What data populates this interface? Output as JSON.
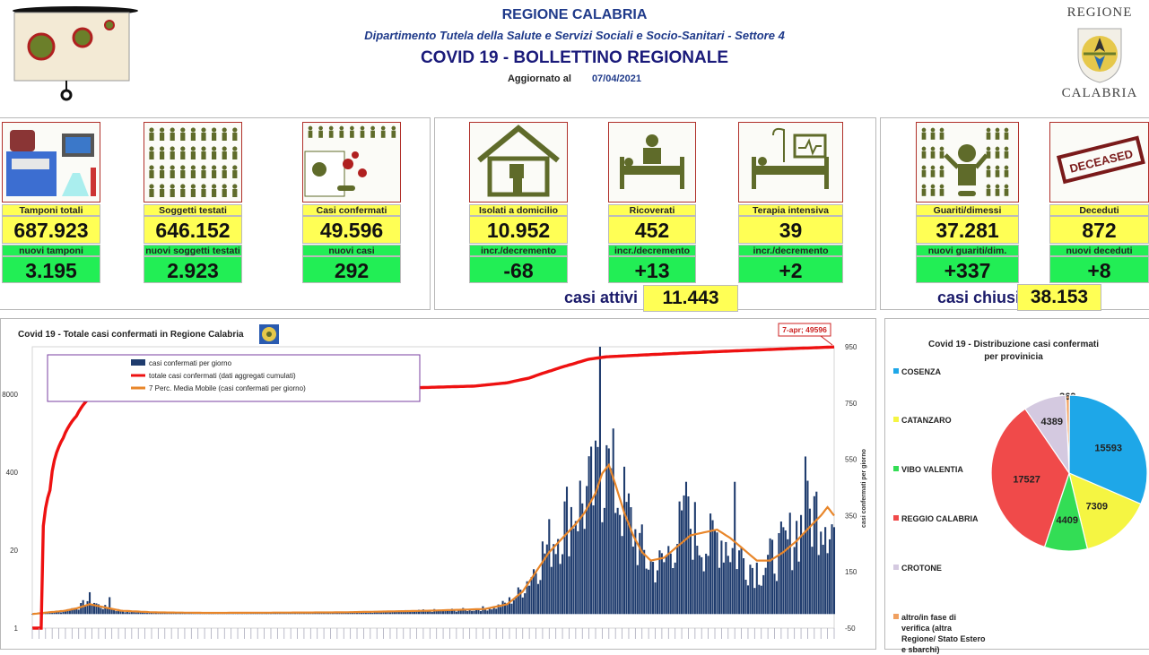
{
  "header": {
    "region": "REGIONE CALABRIA",
    "department": "Dipartimento Tutela della Salute e Servizi Sociali e Socio-Sanitari - Settore 4",
    "title": "COVID 19 - BOLLETTINO REGIONALE",
    "updated_label": "Aggiornato al",
    "updated_date": "07/04/2021",
    "logo_top": "REGIONE",
    "logo_bottom": "CALABRIA"
  },
  "cards": [
    {
      "label": "Tamponi totali",
      "value": "687.923",
      "sub_label": "nuovi tamponi",
      "sub_value": "3.195"
    },
    {
      "label": "Soggetti testati",
      "value": "646.152",
      "sub_label": "nuovi soggetti testati",
      "sub_value": "2.923"
    },
    {
      "label": "Casi confermati",
      "value": "49.596",
      "sub_label": "nuovi casi",
      "sub_value": "292"
    },
    {
      "label": "Isolati a domicilio",
      "value": "10.952",
      "sub_label": "incr./decremento",
      "sub_value": "-68"
    },
    {
      "label": "Ricoverati",
      "value": "452",
      "sub_label": "incr./decremento",
      "sub_value": "+13"
    },
    {
      "label": "Terapia intensiva",
      "value": "39",
      "sub_label": "incr./decremento",
      "sub_value": "+2"
    },
    {
      "label": "Guariti/dimessi",
      "value": "37.281",
      "sub_label": "nuovi guariti/dim.",
      "sub_value": "+337"
    },
    {
      "label": "Deceduti",
      "value": "872",
      "sub_label": "nuovi deceduti",
      "sub_value": "+8",
      "badge": "DECEASED"
    }
  ],
  "summary": {
    "active_label": "casi attivi",
    "active_value": "11.443",
    "closed_label": "casi chiusi",
    "closed_value": "38.153"
  },
  "colors": {
    "title_blue": "#1f3a8a",
    "card_yellow": "#ffff55",
    "card_green": "#22ee55",
    "icon_olive": "#5f6b2a",
    "bar_navy": "#1f3c6e",
    "cumulative_red": "#ee1111",
    "moving_avg_orange": "#e8862a"
  },
  "chart_data": [
    {
      "type": "bar",
      "title": "Covid 19 - Totale casi confermati in Regione Calabria",
      "callout": "7-apr; 49596",
      "legend": [
        "casi confermati per giorno",
        "totale casi confermati (dati aggregati cumulati)",
        "7 Perc. Media Mobile (casi confermati per giorno)"
      ],
      "legend_position": "top-left",
      "left_axis": {
        "scale": "log",
        "ticks": [
          1,
          20,
          400,
          8000
        ]
      },
      "right_axis": {
        "label": "casi confermati per giorno",
        "range": [
          -50,
          950
        ],
        "ticks": [
          -50,
          150,
          350,
          550,
          750,
          950
        ]
      },
      "series": [
        {
          "name": "casi confermati per giorno",
          "kind": "bar",
          "axis": "right",
          "anchors": [
            [
              0,
              0
            ],
            [
              3,
              4
            ],
            [
              8,
              6
            ],
            [
              14,
              10
            ],
            [
              19,
              22
            ],
            [
              22,
              28
            ],
            [
              26,
              55
            ],
            [
              30,
              30
            ],
            [
              34,
              20
            ],
            [
              38,
              15
            ],
            [
              44,
              8
            ],
            [
              55,
              5
            ],
            [
              70,
              5
            ],
            [
              80,
              3
            ],
            [
              100,
              4
            ],
            [
              120,
              4
            ],
            [
              140,
              6
            ],
            [
              160,
              8
            ],
            [
              180,
              12
            ],
            [
              200,
              16
            ],
            [
              210,
              25
            ],
            [
              215,
              40
            ],
            [
              220,
              70
            ],
            [
              225,
              130
            ],
            [
              230,
              200
            ],
            [
              235,
              260
            ],
            [
              240,
              320
            ],
            [
              245,
              380
            ],
            [
              250,
              400
            ],
            [
              255,
              440
            ],
            [
              258,
              520
            ],
            [
              262,
              480
            ],
            [
              266,
              420
            ],
            [
              270,
              340
            ],
            [
              274,
              260
            ],
            [
              278,
              190
            ],
            [
              282,
              170
            ],
            [
              286,
              180
            ],
            [
              290,
              260
            ],
            [
              294,
              300
            ],
            [
              298,
              320
            ],
            [
              302,
              270
            ],
            [
              306,
              240
            ],
            [
              310,
              280
            ],
            [
              314,
              260
            ],
            [
              318,
              220
            ],
            [
              322,
              200
            ],
            [
              326,
              170
            ],
            [
              330,
              160
            ],
            [
              334,
              190
            ],
            [
              338,
              220
            ],
            [
              342,
              250
            ],
            [
              346,
              300
            ],
            [
              350,
              330
            ],
            [
              354,
              360
            ],
            [
              357,
              380
            ],
            [
              360,
              360
            ],
            [
              363,
              300
            ]
          ],
          "peaks": [
            [
              257,
              950
            ],
            [
              35,
              60
            ],
            [
              260,
              600
            ],
            [
              318,
              470
            ],
            [
              350,
              560
            ],
            [
              296,
              470
            ]
          ]
        },
        {
          "name": "totale casi confermati (dati aggregati cumulati)",
          "kind": "line",
          "axis": "left",
          "points": [
            [
              0,
              1
            ],
            [
              4,
              1
            ],
            [
              8,
              200
            ],
            [
              14,
              1500
            ],
            [
              20,
              3500
            ],
            [
              25,
              6500
            ],
            [
              30,
              8000
            ],
            [
              36,
              8500
            ],
            [
              45,
              9100
            ],
            [
              60,
              9400
            ],
            [
              100,
              9700
            ],
            [
              160,
              10000
            ],
            [
              200,
              11000
            ],
            [
              215,
              12500
            ],
            [
              225,
              15000
            ],
            [
              235,
              20000
            ],
            [
              245,
              26000
            ],
            [
              252,
              31000
            ],
            [
              260,
              34000
            ],
            [
              280,
              37000
            ],
            [
              300,
              40000
            ],
            [
              320,
              43000
            ],
            [
              340,
              46000
            ],
            [
              363,
              49596
            ]
          ]
        },
        {
          "name": "7 Perc. Media Mobile (casi confermati per giorno)",
          "kind": "line",
          "axis": "right",
          "points": [
            [
              0,
              0
            ],
            [
              6,
              5
            ],
            [
              15,
              12
            ],
            [
              20,
              20
            ],
            [
              26,
              35
            ],
            [
              32,
              25
            ],
            [
              40,
              12
            ],
            [
              55,
              6
            ],
            [
              80,
              4
            ],
            [
              140,
              6
            ],
            [
              180,
              12
            ],
            [
              205,
              18
            ],
            [
              215,
              35
            ],
            [
              222,
              80
            ],
            [
              228,
              150
            ],
            [
              234,
              220
            ],
            [
              240,
              270
            ],
            [
              246,
              320
            ],
            [
              250,
              360
            ],
            [
              255,
              430
            ],
            [
              258,
              500
            ],
            [
              261,
              530
            ],
            [
              264,
              460
            ],
            [
              268,
              360
            ],
            [
              272,
              280
            ],
            [
              276,
              220
            ],
            [
              280,
              190
            ],
            [
              286,
              200
            ],
            [
              292,
              240
            ],
            [
              298,
              280
            ],
            [
              304,
              290
            ],
            [
              310,
              300
            ],
            [
              316,
              270
            ],
            [
              322,
              230
            ],
            [
              328,
              190
            ],
            [
              334,
              190
            ],
            [
              340,
              220
            ],
            [
              346,
              260
            ],
            [
              352,
              310
            ],
            [
              357,
              350
            ],
            [
              360,
              380
            ],
            [
              363,
              350
            ]
          ]
        }
      ]
    },
    {
      "type": "pie",
      "title": "Covid 19 - Distribuzione casi confermati per provinicia",
      "labels": [
        "COSENZA",
        "CATANZARO",
        "VIBO VALENTIA",
        "REGGIO CALABRIA",
        "CROTONE",
        "altro/in fase di verifica (altra Regione/ Stato Estero e sbarchi)"
      ],
      "values": [
        15593,
        7309,
        4409,
        17527,
        4389,
        369
      ],
      "colors": [
        "#1ea7e8",
        "#f5f542",
        "#33dd55",
        "#f04a4a",
        "#d4c9e0",
        "#f0a060"
      ]
    }
  ]
}
